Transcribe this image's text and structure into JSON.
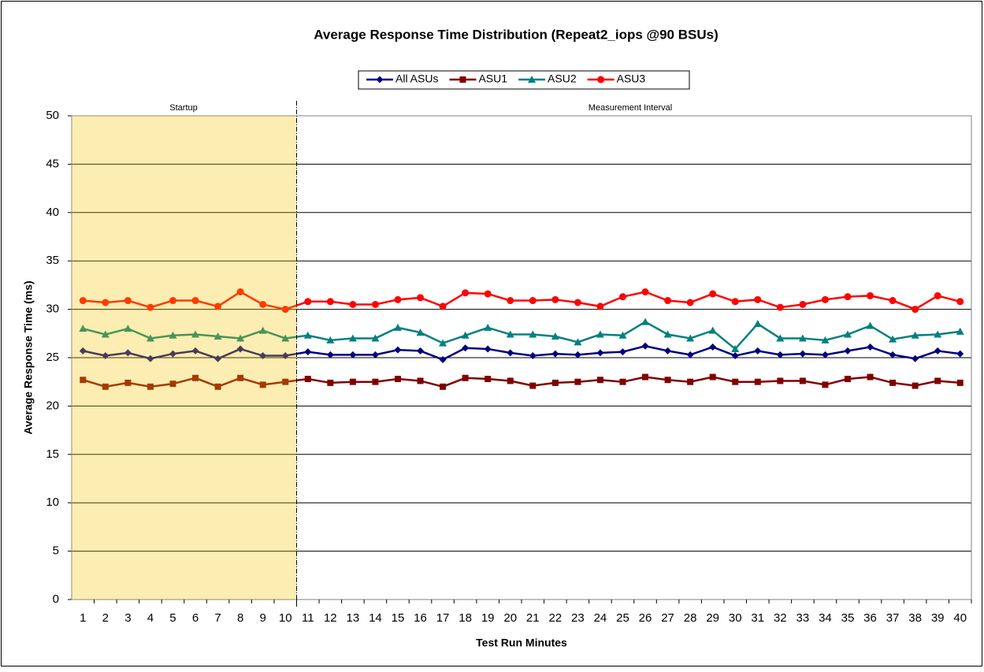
{
  "chart_data": {
    "type": "line",
    "title": "Average Response Time Distribution (Repeat2_iops @90 BSUs)",
    "x_label": "Test Run Minutes",
    "y_label": "Average Response Time (ms)",
    "annotations": [
      "Startup",
      "Measurement Interval"
    ],
    "categories": [
      "1",
      "2",
      "3",
      "4",
      "5",
      "6",
      "7",
      "8",
      "9",
      "10",
      "11",
      "12",
      "13",
      "14",
      "15",
      "16",
      "17",
      "18",
      "19",
      "20",
      "21",
      "22",
      "23",
      "24",
      "25",
      "26",
      "27",
      "28",
      "29",
      "30",
      "31",
      "32",
      "33",
      "34",
      "35",
      "36",
      "37",
      "38",
      "39",
      "40"
    ],
    "series": [
      {
        "name": "All ASUs",
        "color": "#000080",
        "marker": "diamond",
        "values": [
          25.7,
          25.2,
          25.5,
          24.9,
          25.4,
          25.7,
          24.9,
          25.9,
          25.2,
          25.2,
          25.6,
          25.3,
          25.3,
          25.3,
          25.8,
          25.7,
          24.8,
          26.0,
          25.9,
          25.5,
          25.2,
          25.4,
          25.3,
          25.5,
          25.6,
          26.2,
          25.7,
          25.3,
          26.1,
          25.2,
          25.7,
          25.3,
          25.4,
          25.3,
          25.7,
          26.1,
          25.3,
          24.9,
          25.7,
          25.4
        ]
      },
      {
        "name": "ASU1",
        "color": "#800000",
        "marker": "square",
        "values": [
          22.7,
          22.0,
          22.4,
          22.0,
          22.3,
          22.9,
          22.0,
          22.9,
          22.2,
          22.5,
          22.8,
          22.4,
          22.5,
          22.5,
          22.8,
          22.6,
          22.0,
          22.9,
          22.8,
          22.6,
          22.1,
          22.4,
          22.5,
          22.7,
          22.5,
          23.0,
          22.7,
          22.5,
          23.0,
          22.5,
          22.5,
          22.6,
          22.6,
          22.2,
          22.8,
          23.0,
          22.4,
          22.1,
          22.6,
          22.4
        ]
      },
      {
        "name": "ASU2",
        "color": "#008080",
        "marker": "triangle",
        "values": [
          28.0,
          27.4,
          28.0,
          27.0,
          27.3,
          27.4,
          27.2,
          27.0,
          27.8,
          27.0,
          27.3,
          26.8,
          27.0,
          27.0,
          28.1,
          27.6,
          26.5,
          27.3,
          28.1,
          27.4,
          27.4,
          27.2,
          26.6,
          27.4,
          27.3,
          28.7,
          27.4,
          27.0,
          27.8,
          25.9,
          28.5,
          27.0,
          27.0,
          26.8,
          27.4,
          28.3,
          26.9,
          27.3,
          27.4,
          27.7
        ]
      },
      {
        "name": "ASU3",
        "color": "#ff0000",
        "marker": "circle",
        "values": [
          30.9,
          30.7,
          30.9,
          30.2,
          30.9,
          30.9,
          30.3,
          31.8,
          30.5,
          30.0,
          30.8,
          30.8,
          30.5,
          30.5,
          31.0,
          31.2,
          30.3,
          31.7,
          31.6,
          30.9,
          30.9,
          31.0,
          30.7,
          30.3,
          31.3,
          31.8,
          30.9,
          30.7,
          31.6,
          30.8,
          31.0,
          30.2,
          30.5,
          31.0,
          31.3,
          31.4,
          30.9,
          30.0,
          31.4,
          30.8
        ]
      }
    ],
    "ylim": [
      0,
      50
    ],
    "yticks": [
      0,
      5,
      10,
      15,
      20,
      25,
      30,
      35,
      40,
      45,
      50
    ],
    "grid": true,
    "legend": "top"
  }
}
